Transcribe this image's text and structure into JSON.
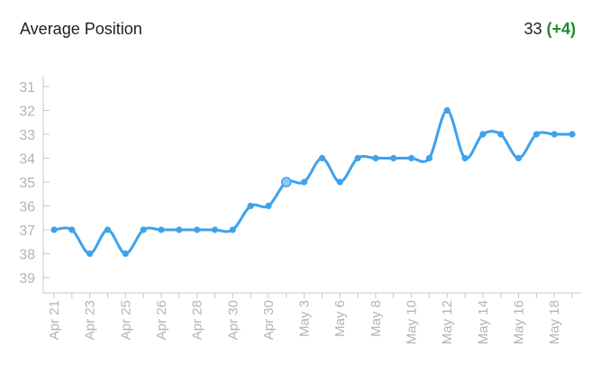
{
  "widget": {
    "title": "Average Position",
    "value": "33",
    "delta": "(+4)",
    "delta_color": "#1e8a2e"
  },
  "colors": {
    "line": "#3ea2ec",
    "axis": "#c8c8c8",
    "tick_text": "#b3b3b3",
    "highlight_point": "#8fc8f4"
  },
  "chart_data": {
    "type": "line",
    "title": "",
    "xlabel": "",
    "ylabel": "",
    "y_inverted": true,
    "ylim": [
      30.4,
      39.6
    ],
    "y_ticks": [
      31,
      32,
      33,
      34,
      35,
      36,
      37,
      38,
      39
    ],
    "x_tick_labels": [
      "Apr 21",
      "Apr 23",
      "Apr 25",
      "Apr 26",
      "Apr 28",
      "Apr 30",
      "Apr 30",
      "May 3",
      "May 6",
      "May 8",
      "May 10",
      "May 12",
      "May 14",
      "May 16",
      "May 18"
    ],
    "grid": false,
    "series": [
      {
        "values": [
          37,
          37,
          38,
          37,
          38,
          37,
          37,
          37,
          37,
          37,
          37,
          36,
          36,
          35,
          35,
          34,
          35,
          34,
          34,
          34,
          34,
          34,
          32,
          34,
          33,
          33,
          34,
          33,
          33,
          33
        ],
        "highlight_index": 13
      }
    ]
  }
}
